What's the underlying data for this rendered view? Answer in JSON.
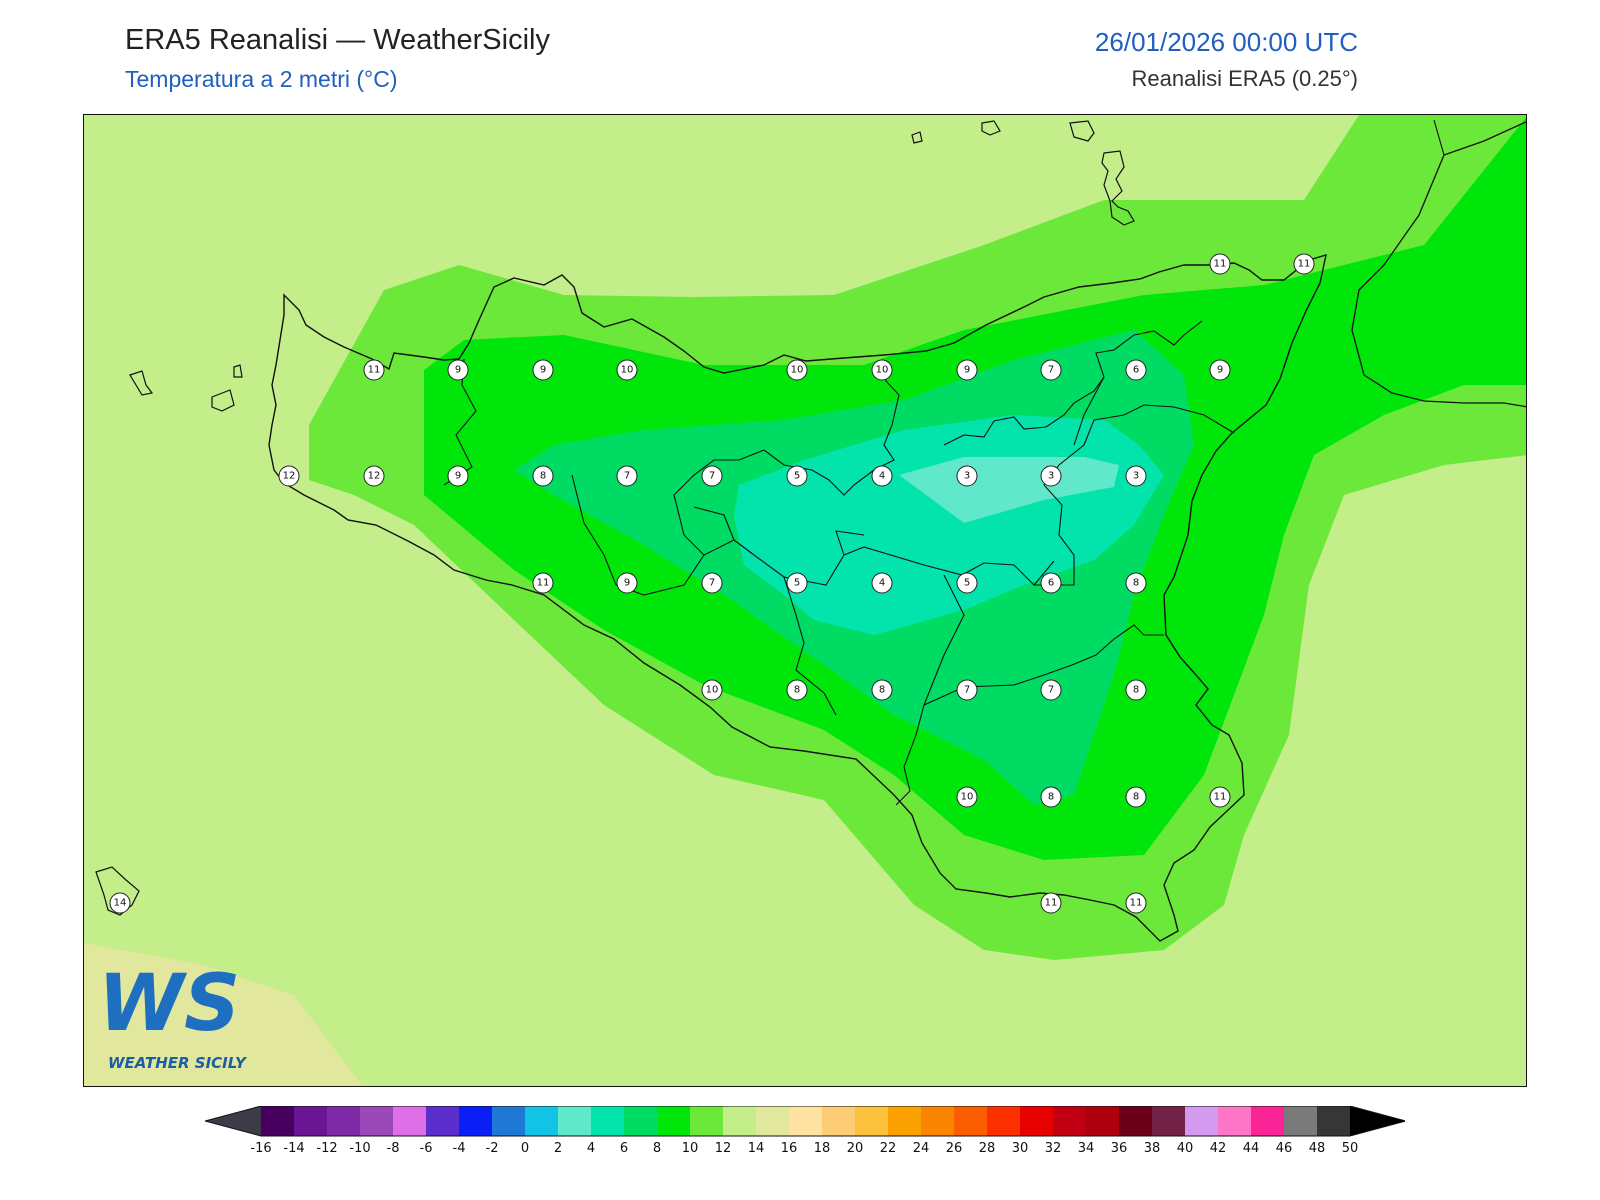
{
  "header": {
    "title": "ERA5 Reanalisi — WeatherSicily",
    "subtitle": "Temperatura a 2 metri (°C)",
    "datetime": "26/01/2026 00:00 UTC",
    "source": "Reanalisi ERA5 (0.25°)"
  },
  "logo": {
    "text": "WEATHER SICILY",
    "mark": "WS"
  },
  "map": {
    "variable": "t2m",
    "unit": "°C",
    "station_values": [
      [
        11,
        9,
        9,
        10,
        10,
        10,
        9,
        7,
        6,
        9
      ],
      [
        12,
        12,
        9,
        8,
        7,
        7,
        5,
        4,
        3,
        3,
        3
      ],
      [
        11,
        9,
        7,
        5,
        4,
        5,
        6,
        8
      ],
      [
        10,
        8,
        8,
        7,
        7,
        8
      ],
      [
        10,
        8,
        8,
        11
      ],
      [
        11,
        11
      ],
      [
        11,
        11
      ],
      [
        14
      ]
    ]
  },
  "colorbar": {
    "labels": [
      "-16",
      "-14",
      "-12",
      "-10",
      "-8",
      "-6",
      "-4",
      "-2",
      "0",
      "2",
      "4",
      "6",
      "8",
      "10",
      "12",
      "14",
      "16",
      "18",
      "20",
      "22",
      "24",
      "26",
      "28",
      "30",
      "32",
      "34",
      "36",
      "38",
      "40",
      "42",
      "44",
      "46",
      "48",
      "50"
    ],
    "colors": [
      "#48005f",
      "#6a1591",
      "#7f2aa6",
      "#9b48b9",
      "#de6fe8",
      "#5b2fcc",
      "#0a1ff5",
      "#1f78d6",
      "#11c4e6",
      "#5fe8c9",
      "#03e3ac",
      "#00dc63",
      "#00e60a",
      "#6ce83b",
      "#c3ee8a",
      "#e2e79e",
      "#fde2a1",
      "#fccc76",
      "#fcc23d",
      "#fca200",
      "#fb8400",
      "#fa5e00",
      "#fb2f00",
      "#e60000",
      "#c00012",
      "#ac000f",
      "#6d0019",
      "#722244",
      "#d29bf0",
      "#ff76c8",
      "#fa2496",
      "#7a7a7a",
      "#363636"
    ],
    "under_color": "#3c3c48",
    "over_color": "#000000"
  }
}
